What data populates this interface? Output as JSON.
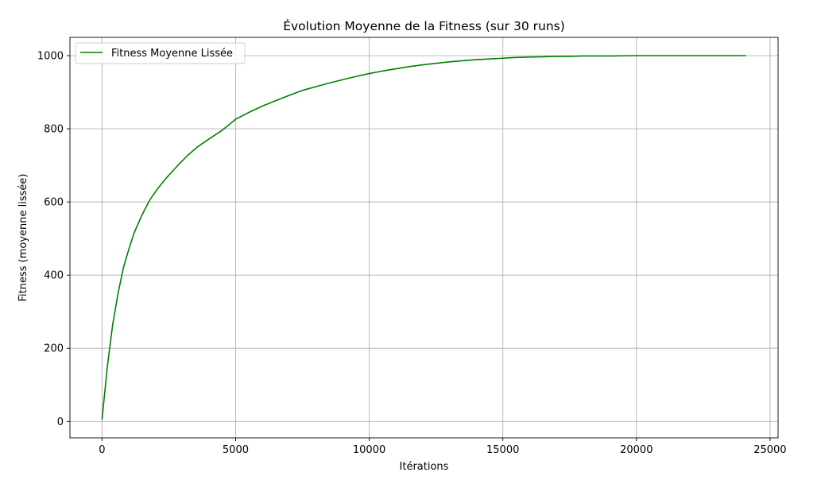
{
  "chart_data": {
    "type": "line",
    "title": "Évolution Moyenne de la Fitness (sur 30 runs)",
    "xlabel": "Itérations",
    "ylabel": "Fitness (moyenne lissée)",
    "xlim": [
      -1200,
      25300
    ],
    "ylim": [
      -45,
      1050
    ],
    "xticks": [
      0,
      5000,
      10000,
      15000,
      20000,
      25000
    ],
    "yticks": [
      0,
      200,
      400,
      600,
      800,
      1000
    ],
    "grid": true,
    "legend_position": "top-left",
    "series": [
      {
        "name": "Fitness Moyenne Lissée",
        "color": "#008000",
        "x": [
          0,
          200,
          400,
          600,
          800,
          1000,
          1200,
          1500,
          1800,
          2100,
          2400,
          2800,
          3200,
          3600,
          4000,
          4500,
          5000,
          5500,
          6000,
          6500,
          7000,
          7500,
          8000,
          8500,
          9000,
          9500,
          10000,
          10500,
          11000,
          11500,
          12000,
          12500,
          13000,
          13500,
          14000,
          14500,
          15000,
          15500,
          16000,
          16500,
          17000,
          17500,
          18000,
          19000,
          20000,
          21000,
          22000,
          23000,
          24100
        ],
        "y": [
          5,
          150,
          265,
          350,
          420,
          470,
          515,
          565,
          607,
          638,
          665,
          697,
          727,
          752,
          772,
          796,
          826,
          845,
          862,
          877,
          891,
          905,
          915,
          925,
          934,
          943,
          951,
          958,
          964,
          970,
          975,
          979,
          983,
          986,
          989,
          991,
          993,
          995,
          996,
          997,
          998,
          998,
          999,
          999,
          1000,
          1000,
          1000,
          1000,
          1000
        ]
      }
    ]
  }
}
